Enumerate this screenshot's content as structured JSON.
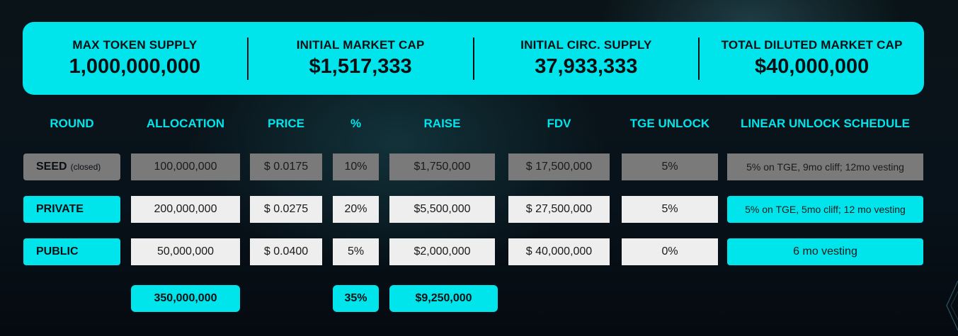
{
  "stats": [
    {
      "label": "MAX TOKEN SUPPLY",
      "value": "1,000,000,000"
    },
    {
      "label": "INITIAL MARKET CAP",
      "value": "$1,517,333"
    },
    {
      "label": "INITIAL CIRC. SUPPLY",
      "value": "37,933,333"
    },
    {
      "label": "TOTAL DILUTED MARKET CAP",
      "value": "$40,000,000"
    }
  ],
  "headers": [
    "ROUND",
    "ALLOCATION",
    "PRICE",
    "%",
    "RAISE",
    "FDV",
    "TGE UNLOCK",
    "LINEAR UNLOCK SCHEDULE"
  ],
  "rows": [
    {
      "round": "SEED",
      "note": "(closed)",
      "allocation": "100,000,000",
      "price": "$ 0.0175",
      "percent": "10%",
      "raise": "$1,750,000",
      "fdv": "$ 17,500,000",
      "tge": "5%",
      "schedule": "5% on TGE, 9mo cliff; 12mo vesting"
    },
    {
      "round": "PRIVATE",
      "note": "",
      "allocation": "200,000,000",
      "price": "$ 0.0275",
      "percent": "20%",
      "raise": "$5,500,000",
      "fdv": "$ 27,500,000",
      "tge": "5%",
      "schedule": "5% on TGE, 5mo cliff; 12 mo vesting"
    },
    {
      "round": "PUBLIC",
      "note": "",
      "allocation": "50,000,000",
      "price": "$ 0.0400",
      "percent": "5%",
      "raise": "$2,000,000",
      "fdv": "$ 40,000,000",
      "tge": "0%",
      "schedule": "6 mo vesting"
    }
  ],
  "totals": {
    "allocation": "350,000,000",
    "percent": "35%",
    "raise": "$9,250,000"
  },
  "colors": {
    "accent": "#00e5ec",
    "closed_row": "#7a7a7a",
    "cell": "#eeeeee",
    "background": "#0a1418"
  }
}
